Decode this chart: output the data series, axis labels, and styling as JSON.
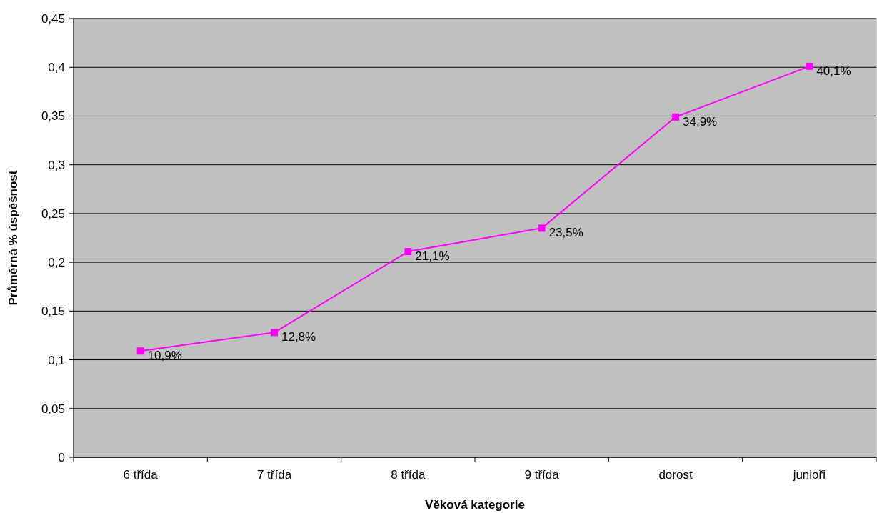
{
  "chart_data": {
    "type": "line",
    "xlabel": "Věková kategorie",
    "ylabel": "Průměrná % úspěšnost",
    "categories": [
      "6 třída",
      "7 třída",
      "8 třída",
      "9 třída",
      "dorost",
      "junioři"
    ],
    "series": [
      {
        "color": "#ff00ff",
        "values": [
          0.109,
          0.128,
          0.211,
          0.235,
          0.349,
          0.401
        ],
        "value_labels": [
          "10,9%",
          "12,8%",
          "21,1%",
          "23,5%",
          "34,9%",
          "40,1%"
        ]
      }
    ],
    "ylim": [
      0,
      0.45
    ],
    "yticks": [
      0,
      {
        "value": 0.05,
        "label": "0,05"
      },
      {
        "value": 0.1,
        "label": "0,1"
      },
      {
        "value": 0.15,
        "label": "0,15"
      },
      {
        "value": 0.2,
        "label": "0,2"
      },
      {
        "value": 0.25,
        "label": "0,25"
      },
      {
        "value": 0.3,
        "label": "0,3"
      },
      {
        "value": 0.35,
        "label": "0,35"
      },
      {
        "value": 0.4,
        "label": "0,4"
      },
      {
        "value": 0.45,
        "label": "0,45"
      }
    ],
    "grid": "y",
    "marker": "square",
    "line_style": "solid"
  }
}
